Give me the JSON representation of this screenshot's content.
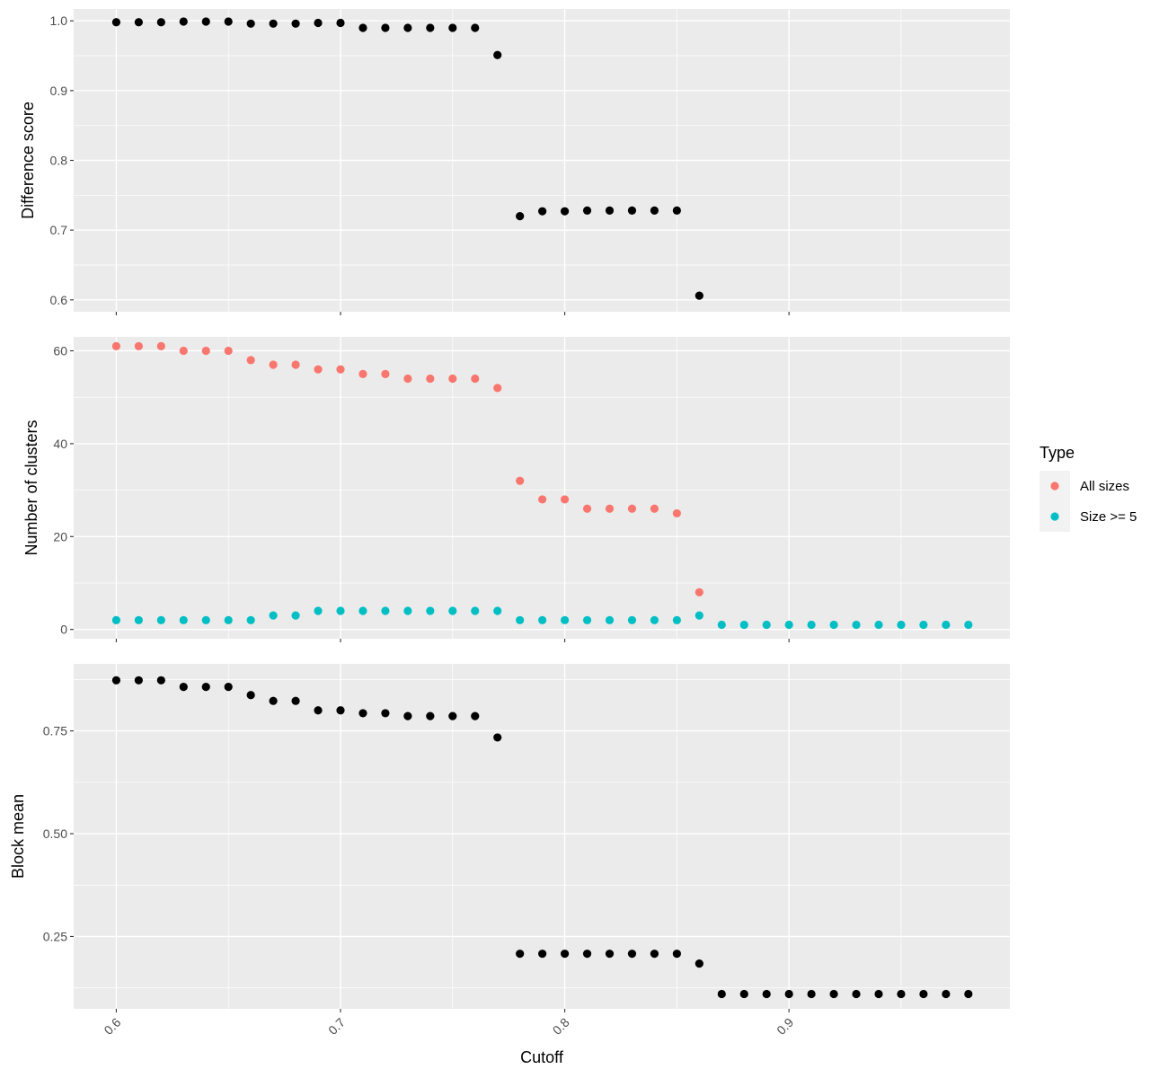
{
  "chart_data": {
    "type": "scatter",
    "xlabel": "Cutoff",
    "x_ticks": [
      0.6,
      0.7,
      0.8,
      0.9
    ],
    "x_tick_labels": [
      "0.6",
      "0.7",
      "0.8",
      "0.9"
    ],
    "xlim": [
      0.581,
      0.9985
    ],
    "grid": true,
    "legend": {
      "title": "Type",
      "placement": "right",
      "entries": [
        {
          "label": "All sizes",
          "color": "#F8766D"
        },
        {
          "label": "Size >= 5",
          "color": "#00BFC4"
        }
      ]
    },
    "panels": [
      {
        "ylabel": "Difference score",
        "ylim": [
          0.583,
          1.017
        ],
        "y_ticks": [
          0.6,
          0.7,
          0.8,
          0.9,
          1.0
        ],
        "y_tick_labels": [
          "0.6",
          "0.7",
          "0.8",
          "0.9",
          "1.0"
        ],
        "series": [
          {
            "color": "#000000",
            "x": [
              0.6,
              0.61,
              0.62,
              0.63,
              0.64,
              0.65,
              0.66,
              0.67,
              0.68,
              0.69,
              0.7,
              0.71,
              0.72,
              0.73,
              0.74,
              0.75,
              0.76,
              0.77,
              0.78,
              0.79,
              0.8,
              0.81,
              0.82,
              0.83,
              0.84,
              0.85,
              0.86
            ],
            "y": [
              0.998,
              0.998,
              0.998,
              0.999,
              0.999,
              0.999,
              0.996,
              0.996,
              0.996,
              0.997,
              0.997,
              0.99,
              0.99,
              0.99,
              0.99,
              0.99,
              0.99,
              0.951,
              0.72,
              0.727,
              0.727,
              0.728,
              0.728,
              0.728,
              0.728,
              0.728,
              0.606
            ]
          }
        ]
      },
      {
        "ylabel": "Number of clusters",
        "ylim": [
          -2,
          63
        ],
        "y_ticks": [
          0,
          20,
          40,
          60
        ],
        "y_tick_labels": [
          "0",
          "20",
          "40",
          "60"
        ],
        "series": [
          {
            "name": "All sizes",
            "color": "#F8766D",
            "x": [
              0.6,
              0.61,
              0.62,
              0.63,
              0.64,
              0.65,
              0.66,
              0.67,
              0.68,
              0.69,
              0.7,
              0.71,
              0.72,
              0.73,
              0.74,
              0.75,
              0.76,
              0.77,
              0.78,
              0.79,
              0.8,
              0.81,
              0.82,
              0.83,
              0.84,
              0.85,
              0.86
            ],
            "y": [
              61,
              61,
              61,
              60,
              60,
              60,
              58,
              57,
              57,
              56,
              56,
              55,
              55,
              54,
              54,
              54,
              54,
              52,
              32,
              28,
              28,
              26,
              26,
              26,
              26,
              25,
              8
            ]
          },
          {
            "name": "Size >= 5",
            "color": "#00BFC4",
            "x": [
              0.6,
              0.61,
              0.62,
              0.63,
              0.64,
              0.65,
              0.66,
              0.67,
              0.68,
              0.69,
              0.7,
              0.71,
              0.72,
              0.73,
              0.74,
              0.75,
              0.76,
              0.77,
              0.78,
              0.79,
              0.8,
              0.81,
              0.82,
              0.83,
              0.84,
              0.85,
              0.86,
              0.87,
              0.88,
              0.89,
              0.9,
              0.91,
              0.92,
              0.93,
              0.94,
              0.95,
              0.96,
              0.97,
              0.98
            ],
            "y": [
              2,
              2,
              2,
              2,
              2,
              2,
              2,
              3,
              3,
              4,
              4,
              4,
              4,
              4,
              4,
              4,
              4,
              4,
              2,
              2,
              2,
              2,
              2,
              2,
              2,
              2,
              3,
              1,
              1,
              1,
              1,
              1,
              1,
              1,
              1,
              1,
              1,
              1,
              1
            ]
          }
        ]
      },
      {
        "ylabel": "Block mean",
        "ylim": [
          0.074,
          0.913
        ],
        "y_ticks": [
          0.25,
          0.5,
          0.75
        ],
        "y_tick_labels": [
          "0.25",
          "0.50",
          "0.75"
        ],
        "series": [
          {
            "color": "#000000",
            "x": [
              0.6,
              0.61,
              0.62,
              0.63,
              0.64,
              0.65,
              0.66,
              0.67,
              0.68,
              0.69,
              0.7,
              0.71,
              0.72,
              0.73,
              0.74,
              0.75,
              0.76,
              0.77,
              0.78,
              0.79,
              0.8,
              0.81,
              0.82,
              0.83,
              0.84,
              0.85,
              0.86,
              0.87,
              0.88,
              0.89,
              0.9,
              0.91,
              0.92,
              0.93,
              0.94,
              0.95,
              0.96,
              0.97,
              0.98
            ],
            "y": [
              0.873,
              0.873,
              0.873,
              0.857,
              0.857,
              0.857,
              0.837,
              0.823,
              0.823,
              0.8,
              0.8,
              0.793,
              0.793,
              0.786,
              0.786,
              0.786,
              0.786,
              0.734,
              0.208,
              0.208,
              0.208,
              0.208,
              0.208,
              0.208,
              0.208,
              0.208,
              0.184,
              0.11,
              0.11,
              0.11,
              0.11,
              0.11,
              0.11,
              0.11,
              0.11,
              0.11,
              0.11,
              0.11,
              0.11
            ]
          }
        ]
      }
    ]
  }
}
